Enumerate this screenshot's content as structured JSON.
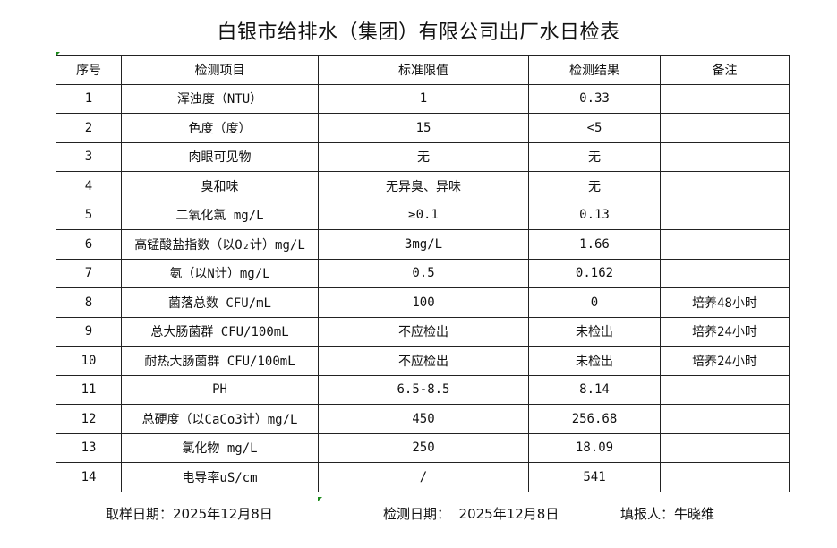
{
  "title": "白银市给排水（集团）有限公司出厂水日检表",
  "headers": [
    "序号",
    "检测项目",
    "标准限值",
    "检测结果",
    "备注"
  ],
  "rows": [
    [
      "1",
      "浑浊度（NTU）",
      "1",
      "0.33",
      ""
    ],
    [
      "2",
      "色度（度）",
      "15",
      "<5",
      ""
    ],
    [
      "3",
      "肉眼可见物",
      "无",
      "无",
      ""
    ],
    [
      "4",
      "臭和味",
      "无异臭、异味",
      "无",
      ""
    ],
    [
      "5",
      "二氧化氯 mg/L",
      "≥0.1",
      "0.13",
      ""
    ],
    [
      "6",
      "高锰酸盐指数（以O₂计）mg/L",
      "3mg/L",
      "1.66",
      ""
    ],
    [
      "7",
      "氨（以N计）mg/L",
      "0.5",
      "0.162",
      ""
    ],
    [
      "8",
      "菌落总数 CFU/mL",
      "100",
      "0",
      "培养48小时"
    ],
    [
      "9",
      "总大肠菌群 CFU/100mL",
      "不应检出",
      "未检出",
      "培养24小时"
    ],
    [
      "10",
      "耐热大肠菌群 CFU/100mL",
      "不应检出",
      "未检出",
      "培养24小时"
    ],
    [
      "11",
      "PH",
      "6.5-8.5",
      "8.14",
      ""
    ],
    [
      "12",
      "总硬度（以CaCo3计）mg/L",
      "450",
      "256.68",
      ""
    ],
    [
      "13",
      "氯化物 mg/L",
      "250",
      "18.09",
      ""
    ],
    [
      "14",
      "电导率uS/cm",
      "/",
      "541",
      ""
    ]
  ],
  "footer": {
    "sample_date": "取样日期：2025年12月8日",
    "test_date": "检测日期：  2025年12月8日",
    "reporter": "填报人：牛晓维"
  }
}
